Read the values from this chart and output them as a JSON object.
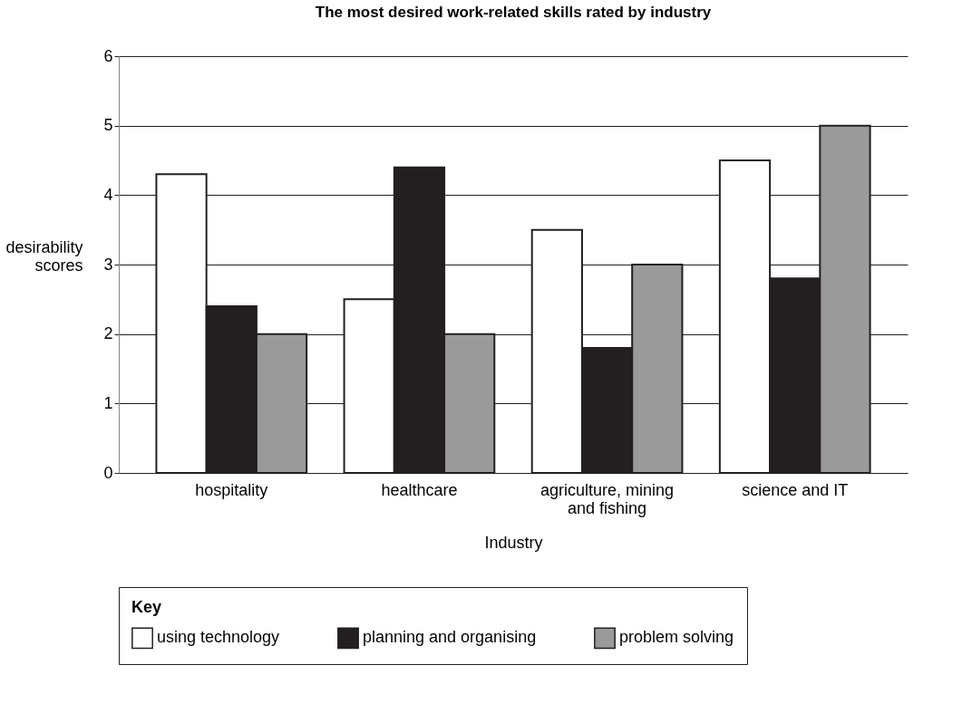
{
  "chart_data": {
    "type": "bar",
    "title": "The most desired work-related skills rated by industry",
    "xlabel": "Industry",
    "ylabel": "desirability scores",
    "legend_title": "Key",
    "categories": [
      "hospitality",
      "healthcare",
      "agriculture, mining and fishing",
      "science and IT"
    ],
    "series": [
      {
        "name": "using technology",
        "color": "#ffffff",
        "values": [
          4.3,
          2.5,
          3.5,
          4.5
        ]
      },
      {
        "name": "planning and organising",
        "color": "#231f20",
        "values": [
          2.4,
          4.4,
          1.8,
          2.8
        ]
      },
      {
        "name": "problem solving",
        "color": "#9a9a9a",
        "values": [
          2,
          2,
          3,
          5
        ]
      }
    ],
    "ylim": [
      0,
      6
    ],
    "yticks": [
      0,
      1,
      2,
      3,
      4,
      5,
      6
    ],
    "grid": "y",
    "legend": "bottom"
  }
}
